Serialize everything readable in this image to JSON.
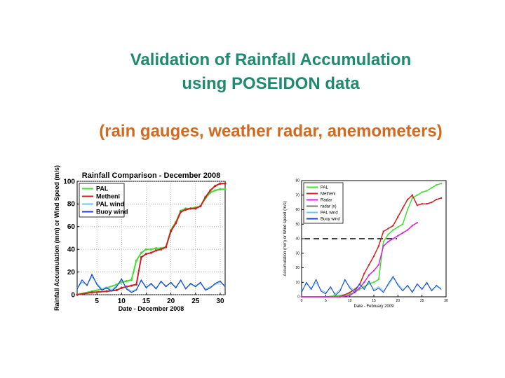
{
  "slide": {
    "title_line1": "Validation of Rainfall Accumulation",
    "title_line2": "using POSEIDON data",
    "subtitle": "(rain gauges, weather radar, anemometers)"
  },
  "colors": {
    "title": "#1f8a70",
    "subtitle": "#d2691e",
    "pal": "#44dd33",
    "metheni": "#cc2222",
    "radar": "#dd22dd",
    "pal_wind": "#66ccee",
    "buoy_wind": "#1a3fd0"
  },
  "chart_data": [
    {
      "type": "line",
      "title": "Rainfall Comparison - December 2008",
      "xlabel": "Date - December 2008",
      "ylabel": "Rainfall Accumulation (mm) or Wind Speed (m/s)",
      "xlim": [
        1,
        31
      ],
      "ylim": [
        0,
        100
      ],
      "xticks": [
        5,
        10,
        15,
        20,
        25,
        30
      ],
      "yticks": [
        0,
        20,
        40,
        60,
        80,
        100
      ],
      "grid": true,
      "legend": "top-left",
      "series": [
        {
          "name": "PAL",
          "color": "#44dd33",
          "x": [
            1,
            4,
            7,
            9,
            10,
            11,
            12,
            13,
            14,
            15,
            16,
            17,
            18,
            19,
            20,
            21,
            22,
            23,
            24,
            25,
            26,
            27,
            28,
            29,
            30,
            31
          ],
          "y": [
            0,
            3,
            6,
            9,
            11,
            12,
            13,
            30,
            37,
            40,
            40,
            41,
            41,
            42,
            57,
            64,
            74,
            76,
            76,
            77,
            78,
            85,
            90,
            92,
            93,
            93
          ]
        },
        {
          "name": "Metheni",
          "color": "#cc2222",
          "x": [
            1,
            4,
            7,
            9,
            10,
            11,
            12,
            13,
            14,
            15,
            16,
            17,
            18,
            19,
            20,
            21,
            22,
            23,
            24,
            25,
            26,
            27,
            28,
            29,
            30,
            31
          ],
          "y": [
            0,
            2,
            3,
            4,
            6,
            7,
            8,
            9,
            33,
            36,
            37,
            39,
            40,
            42,
            56,
            63,
            73,
            75,
            76,
            76,
            78,
            86,
            92,
            96,
            98,
            98
          ]
        },
        {
          "name": "PAL wind",
          "color": "#66ccee",
          "x": [
            1,
            2,
            3,
            4,
            5,
            6,
            7,
            8,
            9,
            10,
            11,
            12,
            13,
            14,
            15,
            16,
            17,
            18,
            19,
            20,
            21,
            22,
            23,
            24,
            25,
            26,
            27,
            28,
            29,
            30,
            31
          ],
          "y": [
            6,
            11,
            9,
            16,
            10,
            5,
            7,
            4,
            8,
            13,
            6,
            3,
            5,
            12,
            7,
            9,
            6,
            11,
            8,
            10,
            7,
            12,
            6,
            9,
            8,
            10,
            5,
            7,
            9,
            11,
            8
          ]
        },
        {
          "name": "Buoy wind",
          "color": "#1a3fd0",
          "x": [
            1,
            2,
            3,
            4,
            5,
            6,
            7,
            8,
            9,
            10,
            11,
            12,
            13,
            14,
            15,
            16,
            17,
            18,
            19,
            20,
            21,
            22,
            23,
            24,
            25,
            26,
            27,
            28,
            29,
            30,
            31
          ],
          "y": [
            5,
            13,
            8,
            18,
            9,
            4,
            6,
            3,
            7,
            14,
            5,
            2,
            4,
            13,
            6,
            10,
            5,
            12,
            7,
            11,
            6,
            13,
            5,
            10,
            7,
            11,
            4,
            6,
            10,
            12,
            7
          ]
        }
      ]
    },
    {
      "type": "line",
      "title": "",
      "xlabel": "Date - February 2009",
      "ylabel": "Accumulation (mm) or Wind speed (m/s)",
      "xlim": [
        0,
        30
      ],
      "ylim": [
        0,
        80
      ],
      "xticks": [
        0,
        5,
        10,
        15,
        20,
        25,
        30
      ],
      "yticks": [
        0,
        10,
        20,
        30,
        40,
        50,
        60,
        70,
        80
      ],
      "grid": false,
      "legend": "top-left",
      "reference_line": {
        "y": 40,
        "style": "dashed"
      },
      "series": [
        {
          "name": "PAL",
          "color": "#44dd33",
          "x": [
            0,
            5,
            8,
            10,
            11,
            12,
            13,
            14,
            15,
            16,
            17,
            18,
            19,
            20,
            21,
            22,
            23,
            24,
            25,
            26,
            27,
            28,
            29
          ],
          "y": [
            0,
            0,
            1,
            2,
            3,
            5,
            7,
            9,
            10,
            12,
            38,
            43,
            46,
            48,
            50,
            60,
            68,
            70,
            72,
            73,
            75,
            77,
            78
          ]
        },
        {
          "name": "Metheni",
          "color": "#cc2222",
          "x": [
            0,
            5,
            8,
            10,
            11,
            12,
            13,
            14,
            15,
            16,
            17,
            18,
            19,
            20,
            21,
            22,
            23,
            24,
            25,
            26,
            27,
            28,
            29
          ],
          "y": [
            0,
            0,
            0,
            3,
            5,
            8,
            16,
            22,
            28,
            35,
            45,
            47,
            49,
            55,
            61,
            67,
            70,
            63,
            64,
            64,
            65,
            67,
            68
          ]
        },
        {
          "name": "Radar",
          "color": "#dd22dd",
          "x": [
            0,
            5,
            8,
            10,
            11,
            12,
            13,
            14,
            15,
            16,
            17,
            18,
            19,
            20,
            21,
            22,
            23,
            24
          ],
          "y": [
            0,
            0,
            0,
            1,
            3,
            6,
            10,
            15,
            18,
            22,
            35,
            38,
            40,
            42,
            44,
            46,
            49,
            51
          ]
        },
        {
          "name": "radar (x)",
          "color": "#777777",
          "x": [],
          "y": []
        },
        {
          "name": "PAL wind",
          "color": "#66ccee",
          "x": [
            0,
            1,
            2,
            3,
            4,
            5,
            6,
            7,
            8,
            9,
            10,
            11,
            12,
            13,
            14,
            15,
            16,
            17,
            18,
            19,
            20,
            21,
            22,
            23,
            24,
            25,
            26,
            27,
            28,
            29
          ],
          "y": [
            4,
            9,
            6,
            10,
            5,
            3,
            6,
            2,
            5,
            11,
            7,
            4,
            8,
            6,
            10,
            5,
            7,
            4,
            8,
            13,
            9,
            5,
            7,
            4,
            8,
            6,
            9,
            5,
            7,
            6
          ]
        },
        {
          "name": "Buoy wind",
          "color": "#1a3fd0",
          "x": [
            0,
            1,
            2,
            3,
            4,
            5,
            6,
            7,
            8,
            9,
            10,
            11,
            12,
            13,
            14,
            15,
            16,
            17,
            18,
            19,
            20,
            21,
            22,
            23,
            24,
            25,
            26,
            27,
            28,
            29
          ],
          "y": [
            3,
            10,
            5,
            12,
            4,
            2,
            7,
            1,
            4,
            12,
            6,
            3,
            9,
            5,
            11,
            4,
            6,
            3,
            9,
            14,
            8,
            4,
            8,
            3,
            9,
            5,
            10,
            4,
            8,
            5
          ]
        }
      ]
    }
  ]
}
